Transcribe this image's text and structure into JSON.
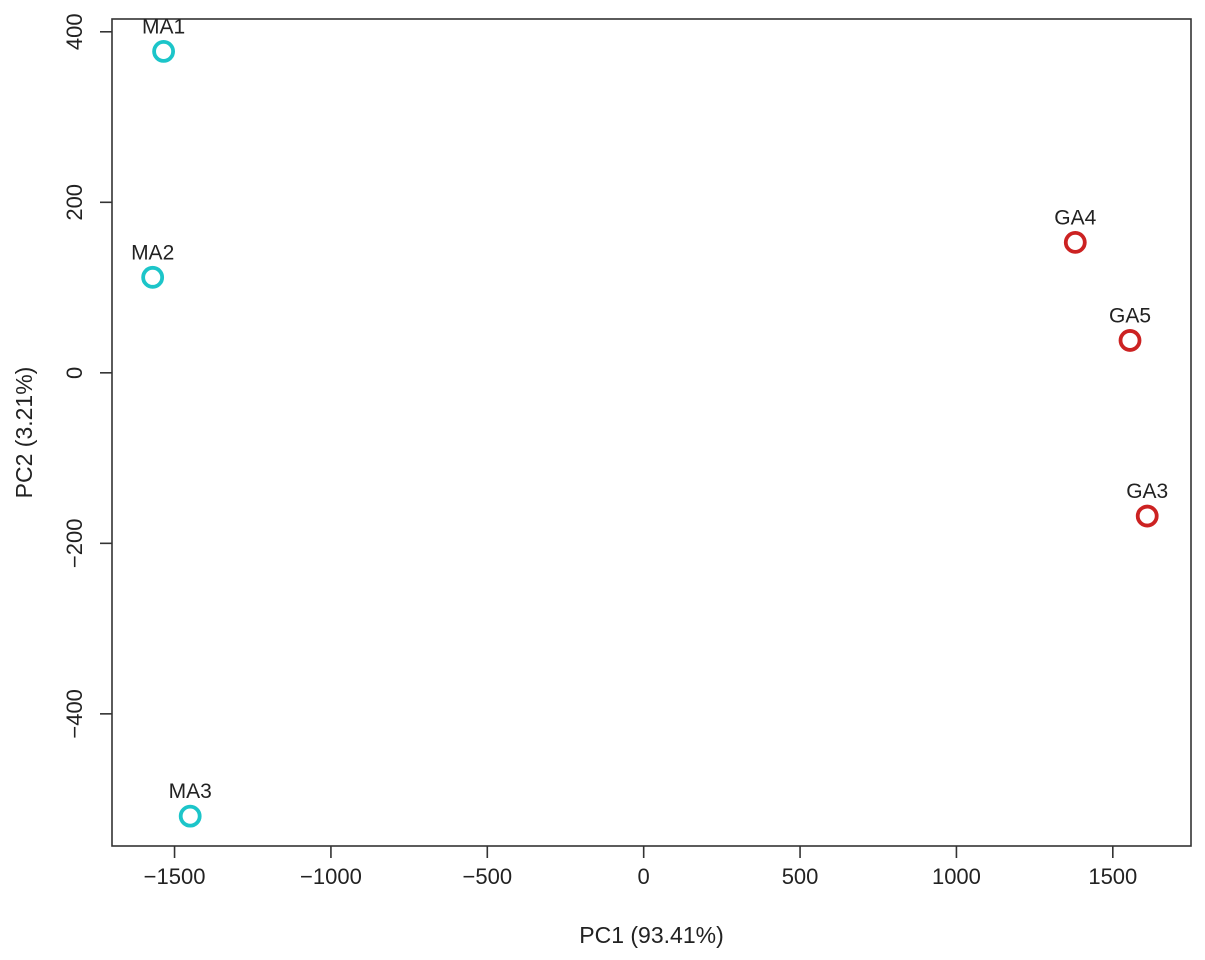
{
  "chart_data": {
    "type": "scatter",
    "title": "",
    "xlabel": "PC1 (93.41%)",
    "ylabel": "PC2 (3.21%)",
    "xlim": [
      -1700,
      1750
    ],
    "ylim": [
      -555,
      415
    ],
    "x_ticks": [
      -1500,
      -1000,
      -500,
      0,
      500,
      1000,
      1500
    ],
    "x_tick_labels": [
      "−1500",
      "−1000",
      "−500",
      "0",
      "500",
      "1000",
      "1500"
    ],
    "y_ticks": [
      -400,
      -200,
      0,
      200,
      400
    ],
    "y_tick_labels": [
      "−400",
      "−200",
      "0",
      "200",
      "400"
    ],
    "grid": false,
    "series": [
      {
        "color": "#1cc5c9",
        "points": [
          {
            "label": "MA1",
            "x": -1535,
            "y": 377
          },
          {
            "label": "MA2",
            "x": -1570,
            "y": 112
          },
          {
            "label": "MA3",
            "x": -1450,
            "y": -520
          }
        ]
      },
      {
        "color": "#cc2222",
        "points": [
          {
            "label": "GA4",
            "x": 1380,
            "y": 153
          },
          {
            "label": "GA5",
            "x": 1555,
            "y": 38
          },
          {
            "label": "GA3",
            "x": 1610,
            "y": -168
          }
        ]
      }
    ]
  }
}
